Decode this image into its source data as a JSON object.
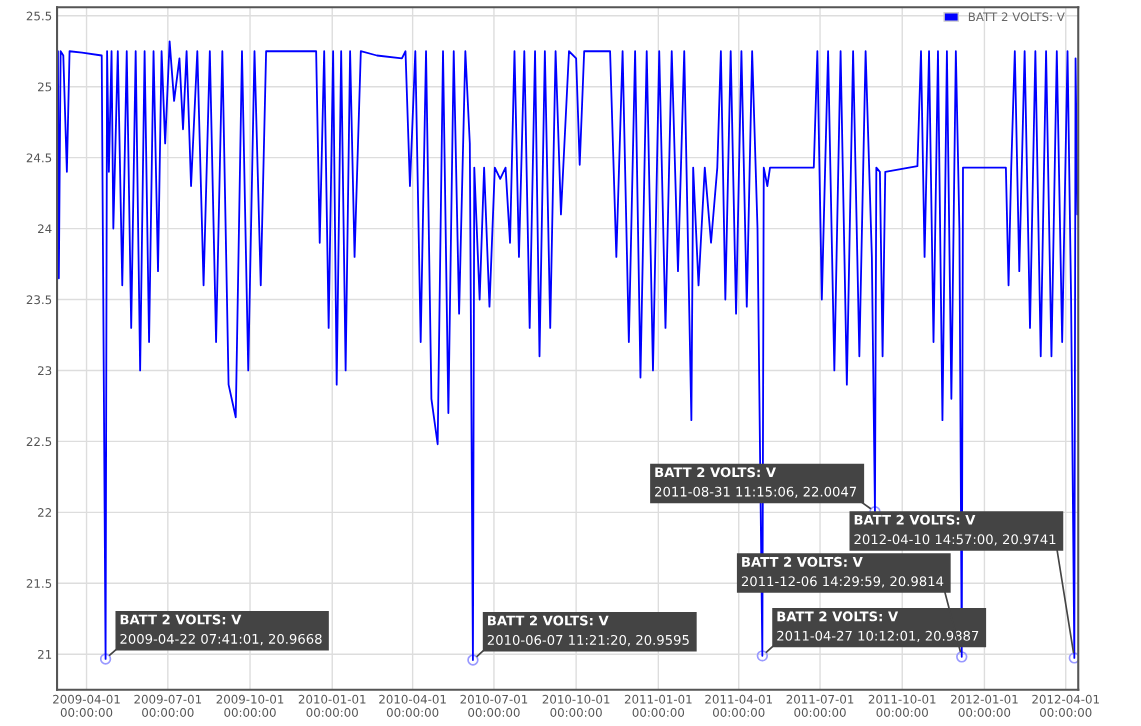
{
  "chart_data": {
    "type": "line",
    "x": [
      "2009-02-28",
      "2009-03-01",
      "2009-03-03",
      "2009-03-06",
      "2009-03-10",
      "2009-03-13",
      "2009-03-27",
      "2009-04-18",
      "2009-04-22T07:41",
      "2009-04-24",
      "2009-04-26",
      "2009-04-29",
      "2009-05-01",
      "2009-05-06",
      "2009-05-11",
      "2009-05-16",
      "2009-05-21",
      "2009-05-26",
      "2009-05-31",
      "2009-06-05",
      "2009-06-10",
      "2009-06-15",
      "2009-06-20",
      "2009-06-24",
      "2009-06-28",
      "2009-07-03",
      "2009-07-08",
      "2009-07-14",
      "2009-07-18",
      "2009-07-22",
      "2009-07-27",
      "2009-08-03",
      "2009-08-10",
      "2009-08-17",
      "2009-08-24",
      "2009-08-31",
      "2009-09-07",
      "2009-09-15",
      "2009-09-22",
      "2009-09-29",
      "2009-10-06",
      "2009-10-13",
      "2009-10-19",
      "2009-11-15",
      "2009-12-14",
      "2009-12-18",
      "2009-12-23",
      "2009-12-28",
      "2010-01-02",
      "2010-01-06",
      "2010-01-11",
      "2010-01-16",
      "2010-01-21",
      "2010-01-26",
      "2010-02-02",
      "2010-02-20",
      "2010-03-20",
      "2010-03-24",
      "2010-03-29",
      "2010-04-04",
      "2010-04-10",
      "2010-04-16",
      "2010-04-22",
      "2010-04-29",
      "2010-05-05",
      "2010-05-11",
      "2010-05-17",
      "2010-05-23",
      "2010-05-30",
      "2010-06-04",
      "2010-06-07T11:21",
      "2010-06-09",
      "2010-06-15",
      "2010-06-20",
      "2010-06-26",
      "2010-07-02",
      "2010-07-08",
      "2010-07-14",
      "2010-07-19",
      "2010-07-24",
      "2010-07-29",
      "2010-08-04",
      "2010-08-10",
      "2010-08-16",
      "2010-08-21",
      "2010-08-27",
      "2010-09-02",
      "2010-09-08",
      "2010-09-14",
      "2010-09-23",
      "2010-10-01",
      "2010-10-05",
      "2010-10-10",
      "2010-11-08",
      "2010-11-15",
      "2010-11-22",
      "2010-11-29",
      "2010-12-06",
      "2010-12-12",
      "2010-12-19",
      "2010-12-26",
      "2011-01-02",
      "2011-01-09",
      "2011-01-16",
      "2011-01-23",
      "2011-01-30",
      "2011-02-07",
      "2011-02-09",
      "2011-02-15",
      "2011-02-22",
      "2011-03-01",
      "2011-03-08",
      "2011-03-12",
      "2011-03-17",
      "2011-03-23",
      "2011-03-29",
      "2011-04-04",
      "2011-04-10",
      "2011-04-16",
      "2011-04-22",
      "2011-04-27T10:12",
      "2011-04-29",
      "2011-05-03",
      "2011-05-06",
      "2011-06-24",
      "2011-06-28",
      "2011-07-03",
      "2011-07-10",
      "2011-07-17",
      "2011-07-24",
      "2011-07-31",
      "2011-08-07",
      "2011-08-14",
      "2011-08-21",
      "2011-08-28",
      "2011-08-31T11:15",
      "2011-09-02",
      "2011-09-06",
      "2011-09-09",
      "2011-09-12",
      "2011-10-18",
      "2011-10-22",
      "2011-10-26",
      "2011-10-31",
      "2011-11-05",
      "2011-11-10",
      "2011-11-15",
      "2011-11-20",
      "2011-11-25",
      "2011-11-30",
      "2011-12-04",
      "2011-12-06T14:29",
      "2011-12-08",
      "2012-01-25",
      "2012-01-28",
      "2012-01-31",
      "2012-02-04",
      "2012-02-09",
      "2012-02-15",
      "2012-02-21",
      "2012-02-27",
      "2012-03-04",
      "2012-03-10",
      "2012-03-16",
      "2012-03-22",
      "2012-03-28",
      "2012-04-03",
      "2012-04-07",
      "2012-04-10T14:57",
      "2012-04-12",
      "2012-04-14"
    ],
    "series": [
      {
        "name": "BATT 2 VOLTS: V",
        "color": "#0000ff",
        "values": [
          25.25,
          23.65,
          25.25,
          25.22,
          24.4,
          25.25,
          25.24,
          25.22,
          20.9668,
          25.25,
          24.4,
          25.25,
          24.0,
          25.25,
          23.6,
          25.25,
          23.3,
          25.25,
          23.0,
          25.25,
          23.2,
          25.25,
          23.7,
          25.25,
          24.6,
          25.32,
          24.9,
          25.2,
          24.7,
          25.25,
          24.3,
          25.25,
          23.6,
          25.25,
          23.2,
          25.25,
          22.9,
          22.67,
          25.25,
          23.0,
          25.25,
          23.6,
          25.25,
          25.25,
          25.25,
          23.9,
          25.25,
          23.3,
          25.25,
          22.9,
          25.25,
          23.0,
          25.25,
          23.8,
          25.25,
          25.22,
          25.2,
          25.25,
          24.3,
          25.25,
          23.2,
          25.25,
          22.8,
          22.48,
          25.25,
          22.7,
          25.25,
          23.4,
          25.25,
          24.6,
          20.9595,
          24.43,
          23.5,
          24.43,
          23.45,
          24.43,
          24.35,
          24.43,
          23.9,
          25.25,
          23.8,
          25.25,
          23.3,
          25.25,
          23.1,
          25.25,
          23.3,
          25.25,
          24.1,
          25.25,
          25.2,
          24.45,
          25.25,
          25.25,
          23.8,
          25.25,
          23.2,
          25.25,
          22.95,
          25.25,
          23.0,
          25.25,
          23.3,
          25.25,
          23.7,
          25.25,
          22.65,
          24.43,
          23.6,
          24.43,
          23.9,
          24.43,
          25.25,
          23.5,
          25.25,
          23.4,
          25.25,
          23.45,
          25.25,
          24.0,
          20.9887,
          24.43,
          24.3,
          24.43,
          24.43,
          25.25,
          23.5,
          25.25,
          23.0,
          25.25,
          22.9,
          25.25,
          23.1,
          25.25,
          23.8,
          22.0047,
          24.43,
          24.4,
          23.1,
          24.4,
          24.44,
          25.25,
          23.8,
          25.25,
          23.2,
          25.25,
          22.65,
          25.25,
          22.8,
          25.25,
          24.0,
          20.9814,
          24.43,
          24.43,
          23.6,
          24.43,
          25.25,
          23.7,
          25.25,
          23.3,
          25.25,
          23.1,
          25.25,
          23.1,
          25.25,
          23.2,
          25.25,
          23.5,
          20.9741,
          25.2,
          24.1
        ]
      }
    ],
    "xlim": [
      "2009-02-27",
      "2012-04-15"
    ],
    "xticks": [
      {
        "value": "2009-04-01",
        "label": "2009-04-01\n00:00:00"
      },
      {
        "value": "2009-07-01",
        "label": "2009-07-01\n00:00:00"
      },
      {
        "value": "2009-10-01",
        "label": "2009-10-01\n00:00:00"
      },
      {
        "value": "2010-01-01",
        "label": "2010-01-01\n00:00:00"
      },
      {
        "value": "2010-04-01",
        "label": "2010-04-01\n00:00:00"
      },
      {
        "value": "2010-07-01",
        "label": "2010-07-01\n00:00:00"
      },
      {
        "value": "2010-10-01",
        "label": "2010-10-01\n00:00:00"
      },
      {
        "value": "2011-01-01",
        "label": "2011-01-01\n00:00:00"
      },
      {
        "value": "2011-04-01",
        "label": "2011-04-01\n00:00:00"
      },
      {
        "value": "2011-07-01",
        "label": "2011-07-01\n00:00:00"
      },
      {
        "value": "2011-10-01",
        "label": "2011-10-01\n00:00:00"
      },
      {
        "value": "2012-01-01",
        "label": "2012-01-01\n00:00:00"
      },
      {
        "value": "2012-04-01",
        "label": "2012-04-01\n00:00:00"
      }
    ],
    "ylim": [
      20.75,
      25.56
    ],
    "yticks": [
      21,
      21.5,
      22,
      22.5,
      23,
      23.5,
      24,
      24.5,
      25,
      25.5
    ],
    "grid": true,
    "legend": "top right",
    "marker": "none",
    "line_style": "solid",
    "annotations": [
      {
        "text": "BATT 2 VOLTS: V\n2009-04-22 07:41:01, 20.9668",
        "x": "2009-04-22T07:41",
        "y": 20.9668
      },
      {
        "text": "BATT 2 VOLTS: V\n2010-06-07 11:21:20, 20.9595",
        "x": "2010-06-07T11:21",
        "y": 20.9595
      },
      {
        "text": "BATT 2 VOLTS: V\n2011-04-27 10:12:01, 20.9887",
        "x": "2011-04-27T10:12",
        "y": 20.9887
      },
      {
        "text": "BATT 2 VOLTS: V\n2011-08-31 11:15:06, 22.0047",
        "x": "2011-08-31T11:15",
        "y": 22.0047
      },
      {
        "text": "BATT 2 VOLTS: V\n2011-12-06 14:29:59, 20.9814",
        "x": "2011-12-06T14:29",
        "y": 20.9814
      },
      {
        "text": "BATT 2 VOLTS: V\n2012-04-10 14:57:00, 20.9741",
        "x": "2012-04-10T14:57",
        "y": 20.9741
      }
    ]
  }
}
